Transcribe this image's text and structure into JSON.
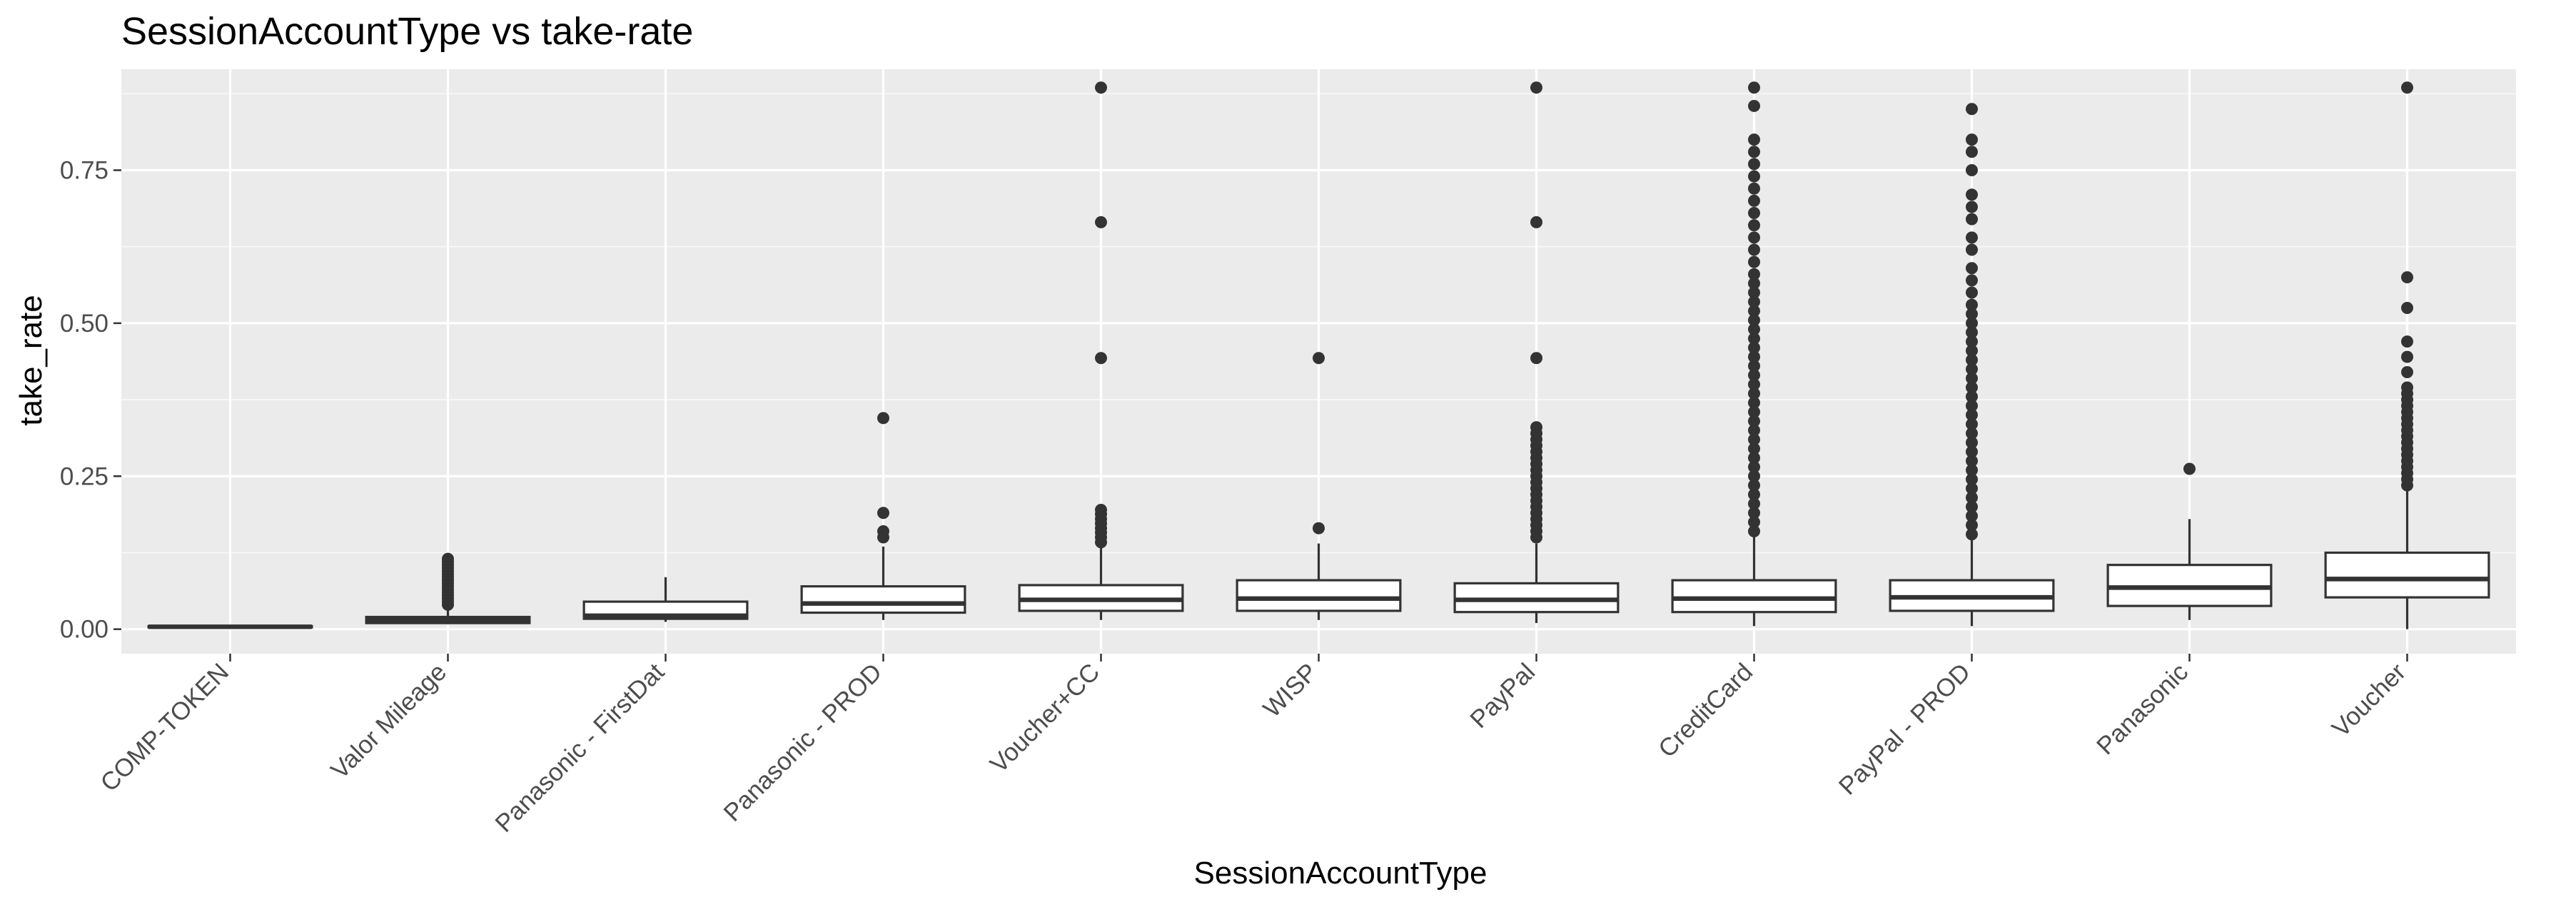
{
  "chart_data": {
    "type": "boxplot",
    "title": "SessionAccountType vs take-rate",
    "xlabel": "SessionAccountType",
    "ylabel": "take_rate",
    "ylim": [
      -0.04,
      0.915
    ],
    "yticks": [
      0.0,
      0.25,
      0.5,
      0.75
    ],
    "ytick_labels": [
      "0.00",
      "0.25",
      "0.50",
      "0.75"
    ],
    "grid": true,
    "colors": {
      "panel_bg": "#ebebeb",
      "grid_major": "#ffffff",
      "box_fill": "#ffffff",
      "box_line": "#333333",
      "outlier": "#333333"
    },
    "categories": [
      "COMP-TOKEN",
      "Valor Mileage",
      "Panasonic - FirstDat",
      "Panasonic - PROD",
      "Voucher+CC",
      "WISP",
      "PayPal",
      "CreditCard",
      "PayPal - PROD",
      "Panasonic",
      "Voucher"
    ],
    "boxes": [
      {
        "category": "COMP-TOKEN",
        "whisker_low": 0.003,
        "q1": 0.003,
        "median": 0.004,
        "q3": 0.005,
        "whisker_high": 0.005,
        "outliers": []
      },
      {
        "category": "Valor Mileage",
        "whisker_low": 0.008,
        "q1": 0.01,
        "median": 0.015,
        "q3": 0.02,
        "whisker_high": 0.035,
        "outliers": [
          0.04,
          0.045,
          0.05,
          0.055,
          0.06,
          0.065,
          0.07,
          0.075,
          0.08,
          0.085,
          0.09,
          0.095,
          0.1,
          0.105,
          0.11,
          0.115
        ]
      },
      {
        "category": "Panasonic - FirstDat",
        "whisker_low": 0.012,
        "q1": 0.017,
        "median": 0.022,
        "q3": 0.045,
        "whisker_high": 0.085,
        "outliers": []
      },
      {
        "category": "Panasonic - PROD",
        "whisker_low": 0.015,
        "q1": 0.027,
        "median": 0.042,
        "q3": 0.07,
        "whisker_high": 0.135,
        "outliers": [
          0.15,
          0.16,
          0.19,
          0.345
        ]
      },
      {
        "category": "Voucher+CC",
        "whisker_low": 0.015,
        "q1": 0.03,
        "median": 0.048,
        "q3": 0.072,
        "whisker_high": 0.135,
        "outliers": [
          0.142,
          0.15,
          0.158,
          0.165,
          0.173,
          0.18,
          0.188,
          0.195,
          0.443,
          0.665,
          0.885
        ]
      },
      {
        "category": "WISP",
        "whisker_low": 0.015,
        "q1": 0.03,
        "median": 0.05,
        "q3": 0.08,
        "whisker_high": 0.14,
        "outliers": [
          0.165,
          0.443
        ]
      },
      {
        "category": "PayPal",
        "whisker_low": 0.01,
        "q1": 0.028,
        "median": 0.048,
        "q3": 0.075,
        "whisker_high": 0.14,
        "outliers": [
          0.15,
          0.16,
          0.17,
          0.18,
          0.19,
          0.2,
          0.21,
          0.22,
          0.23,
          0.24,
          0.25,
          0.26,
          0.27,
          0.28,
          0.29,
          0.3,
          0.31,
          0.32,
          0.33,
          0.443,
          0.665,
          0.885
        ]
      },
      {
        "category": "CreditCard",
        "whisker_low": 0.005,
        "q1": 0.028,
        "median": 0.05,
        "q3": 0.08,
        "whisker_high": 0.155,
        "outliers": [
          0.16,
          0.175,
          0.19,
          0.205,
          0.22,
          0.235,
          0.25,
          0.265,
          0.28,
          0.295,
          0.31,
          0.325,
          0.34,
          0.355,
          0.37,
          0.385,
          0.4,
          0.415,
          0.43,
          0.445,
          0.46,
          0.475,
          0.49,
          0.505,
          0.52,
          0.535,
          0.55,
          0.565,
          0.58,
          0.6,
          0.62,
          0.64,
          0.66,
          0.68,
          0.7,
          0.72,
          0.74,
          0.76,
          0.78,
          0.8,
          0.855,
          0.885
        ]
      },
      {
        "category": "PayPal - PROD",
        "whisker_low": 0.005,
        "q1": 0.03,
        "median": 0.052,
        "q3": 0.08,
        "whisker_high": 0.15,
        "outliers": [
          0.155,
          0.17,
          0.185,
          0.2,
          0.215,
          0.23,
          0.245,
          0.26,
          0.275,
          0.29,
          0.305,
          0.32,
          0.335,
          0.35,
          0.365,
          0.38,
          0.395,
          0.41,
          0.425,
          0.44,
          0.455,
          0.47,
          0.485,
          0.5,
          0.515,
          0.53,
          0.55,
          0.57,
          0.59,
          0.62,
          0.64,
          0.67,
          0.69,
          0.71,
          0.75,
          0.78,
          0.8,
          0.85
        ]
      },
      {
        "category": "Panasonic",
        "whisker_low": 0.015,
        "q1": 0.038,
        "median": 0.068,
        "q3": 0.105,
        "whisker_high": 0.18,
        "outliers": [
          0.262
        ]
      },
      {
        "category": "Voucher",
        "whisker_low": 0.0,
        "q1": 0.052,
        "median": 0.082,
        "q3": 0.125,
        "whisker_high": 0.23,
        "outliers": [
          0.235,
          0.245,
          0.255,
          0.265,
          0.275,
          0.285,
          0.295,
          0.305,
          0.315,
          0.325,
          0.335,
          0.345,
          0.355,
          0.365,
          0.375,
          0.385,
          0.395,
          0.42,
          0.445,
          0.47,
          0.525,
          0.575,
          0.885
        ]
      }
    ]
  }
}
